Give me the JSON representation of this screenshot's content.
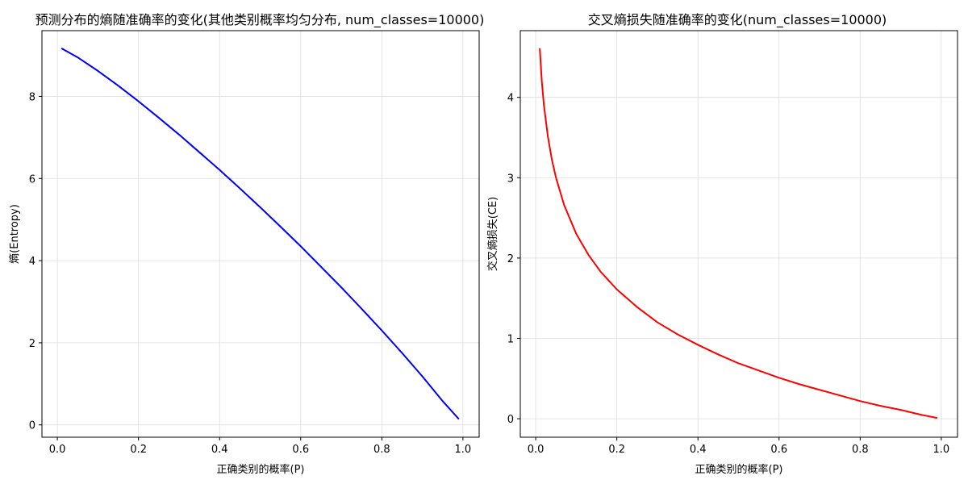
{
  "chart_data": [
    {
      "type": "line",
      "title": "预测分布的熵随准确率的变化(其他类别概率均匀分布, num_classes=10000)",
      "xlabel": "正确类别的概率(P)",
      "ylabel": "熵(Entropy)",
      "xlim": [
        -0.038,
        1.04
      ],
      "ylim": [
        -0.3,
        9.6
      ],
      "xticks": [
        "0.0",
        "0.2",
        "0.4",
        "0.6",
        "0.8",
        "1.0"
      ],
      "xtick_values": [
        0,
        0.2,
        0.4,
        0.6,
        0.8,
        1.0
      ],
      "yticks": [
        "0",
        "2",
        "4",
        "6",
        "8"
      ],
      "ytick_values": [
        0,
        2,
        4,
        6,
        8
      ],
      "grid": true,
      "series": [
        {
          "color": "#0000ff",
          "x": [
            0.01,
            0.05,
            0.1,
            0.15,
            0.2,
            0.25,
            0.3,
            0.35,
            0.4,
            0.45,
            0.5,
            0.55,
            0.6,
            0.65,
            0.7,
            0.75,
            0.8,
            0.85,
            0.9,
            0.95,
            0.99
          ],
          "y": [
            9.17,
            8.95,
            8.62,
            8.26,
            7.88,
            7.48,
            7.07,
            6.64,
            6.21,
            5.76,
            5.3,
            4.83,
            4.35,
            3.85,
            3.35,
            2.83,
            2.3,
            1.75,
            1.18,
            0.58,
            0.14
          ]
        }
      ]
    },
    {
      "type": "line",
      "title": "交叉熵损失随准确率的变化(num_classes=10000)",
      "xlabel": "正确类别的概率(P)",
      "ylabel": "交叉熵损失(CE)",
      "xlim": [
        -0.038,
        1.04
      ],
      "ylim": [
        -0.23,
        4.83
      ],
      "xticks": [
        "0.0",
        "0.2",
        "0.4",
        "0.6",
        "0.8",
        "1.0"
      ],
      "xtick_values": [
        0,
        0.2,
        0.4,
        0.6,
        0.8,
        1.0
      ],
      "yticks": [
        "0",
        "1",
        "2",
        "3",
        "4"
      ],
      "ytick_values": [
        0,
        1,
        2,
        3,
        4
      ],
      "grid": true,
      "series": [
        {
          "color": "#ff0000",
          "x": [
            0.01,
            0.015,
            0.02,
            0.03,
            0.04,
            0.05,
            0.07,
            0.1,
            0.13,
            0.16,
            0.2,
            0.25,
            0.3,
            0.35,
            0.4,
            0.45,
            0.5,
            0.55,
            0.6,
            0.65,
            0.7,
            0.75,
            0.8,
            0.85,
            0.9,
            0.95,
            0.99
          ],
          "y": [
            4.61,
            4.2,
            3.91,
            3.51,
            3.22,
            3.0,
            2.66,
            2.3,
            2.04,
            1.83,
            1.61,
            1.39,
            1.2,
            1.05,
            0.92,
            0.8,
            0.69,
            0.6,
            0.51,
            0.43,
            0.36,
            0.29,
            0.22,
            0.16,
            0.11,
            0.05,
            0.01
          ]
        }
      ]
    }
  ]
}
